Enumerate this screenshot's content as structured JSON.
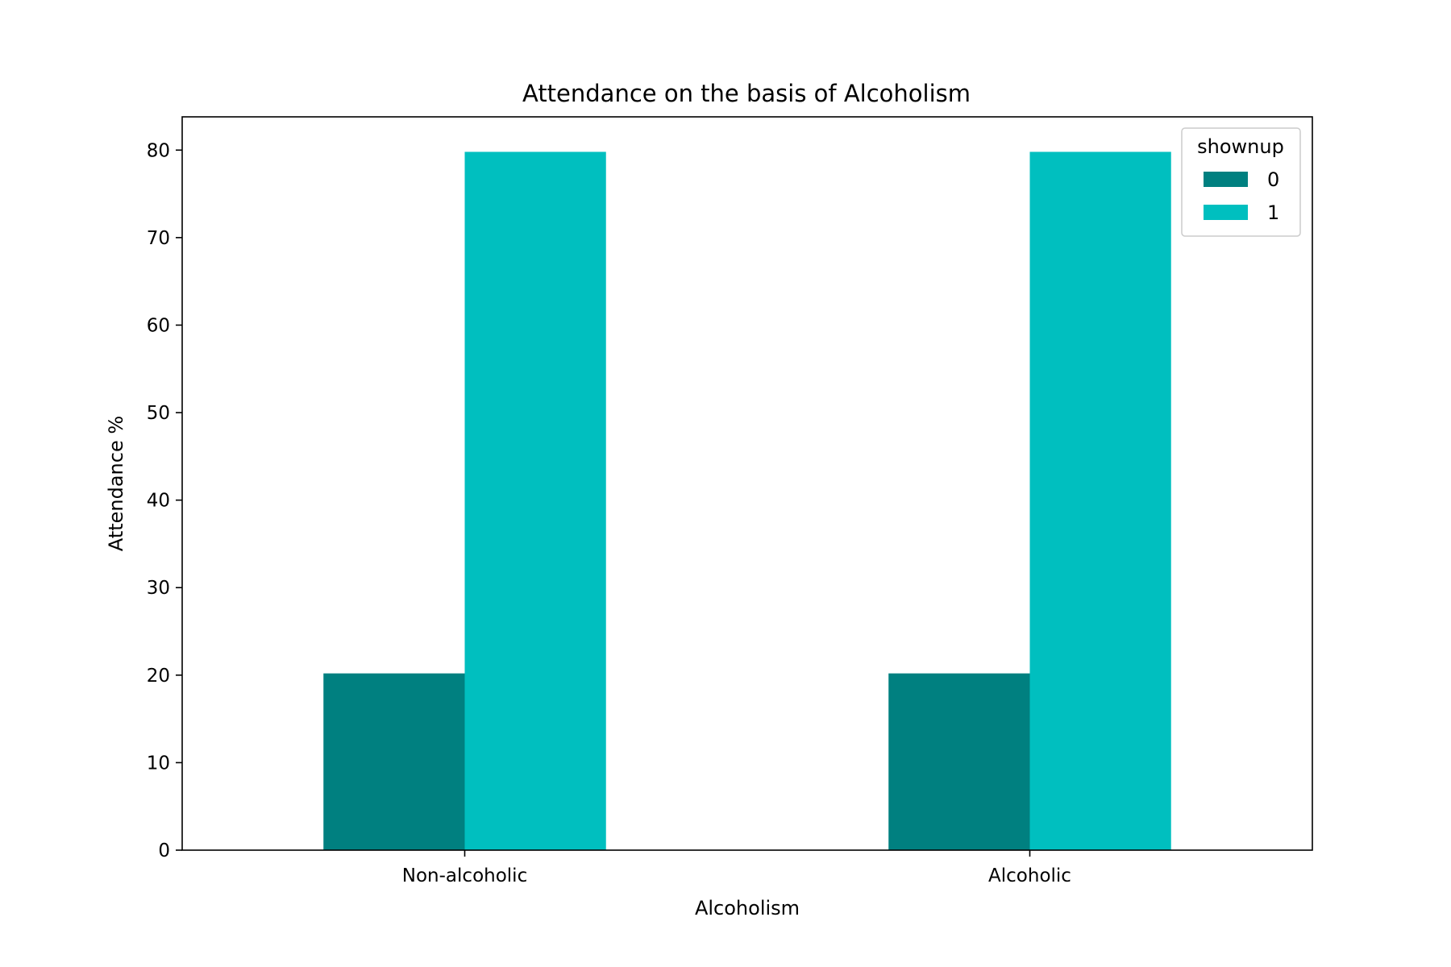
{
  "chart_data": {
    "type": "bar",
    "title": "Attendance on the basis of Alcoholism",
    "xlabel": "Alcoholism",
    "ylabel": "Attendance %",
    "categories": [
      "Non-alcoholic",
      "Alcoholic"
    ],
    "series": [
      {
        "name": "0",
        "values": [
          20.2,
          20.2
        ],
        "color": "#008080"
      },
      {
        "name": "1",
        "values": [
          79.8,
          79.8
        ],
        "color": "#00bfbf"
      }
    ],
    "ylim": [
      0,
      83.8
    ],
    "yticks": [
      0,
      10,
      20,
      30,
      40,
      50,
      60,
      70,
      80
    ],
    "legend": {
      "title": "shownup",
      "placement": "top-right"
    },
    "grid": false
  }
}
